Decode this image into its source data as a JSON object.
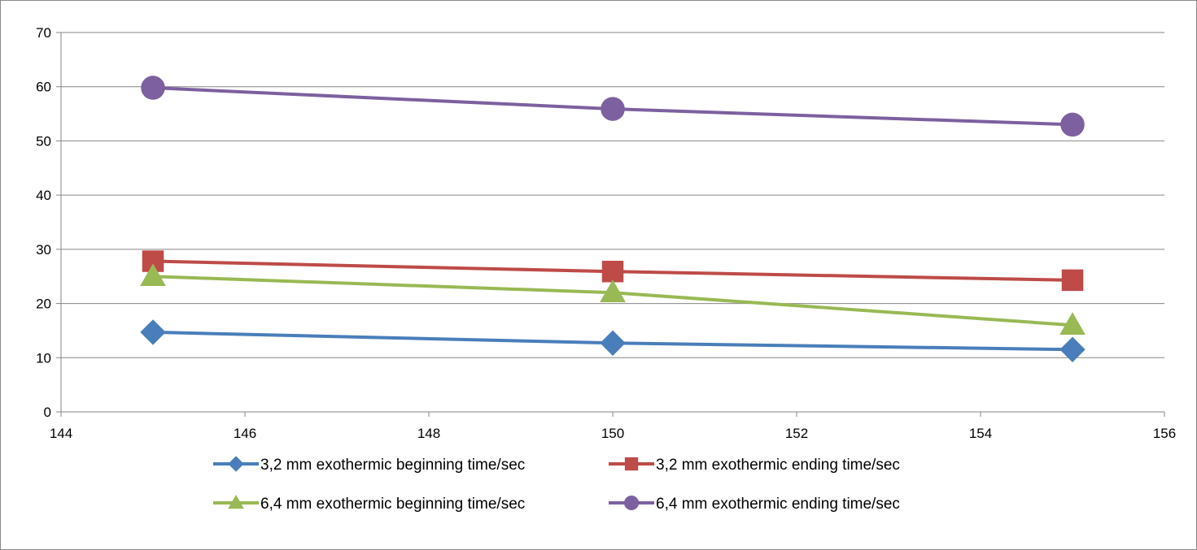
{
  "chart_data": {
    "type": "line",
    "title": "",
    "xlabel": "",
    "ylabel": "",
    "xlim": [
      144,
      156
    ],
    "ylim": [
      0,
      70
    ],
    "x_ticks": [
      144,
      146,
      148,
      150,
      152,
      154,
      156
    ],
    "y_ticks": [
      0,
      10,
      20,
      30,
      40,
      50,
      60,
      70
    ],
    "grid": {
      "horizontal": true,
      "vertical": false
    },
    "legend_position": "bottom",
    "series": [
      {
        "name": "3,2 mm exothermic beginning time/sec",
        "color": "#4a7ebb",
        "marker": "diamond",
        "x": [
          145,
          150,
          155
        ],
        "y": [
          14.7,
          12.7,
          11.5
        ]
      },
      {
        "name": "3,2 mm exothermic ending time/sec",
        "color": "#be4b48",
        "marker": "square",
        "x": [
          145,
          150,
          155
        ],
        "y": [
          27.8,
          25.9,
          24.3
        ]
      },
      {
        "name": "6,4 mm exothermic beginning time/sec",
        "color": "#98b954",
        "marker": "triangle",
        "x": [
          145,
          150,
          155
        ],
        "y": [
          25,
          22,
          16
        ]
      },
      {
        "name": "6,4 mm exothermic ending time/sec",
        "color": "#7d60a0",
        "marker": "circle",
        "x": [
          145,
          150,
          155
        ],
        "y": [
          59.8,
          55.9,
          53
        ]
      }
    ]
  }
}
